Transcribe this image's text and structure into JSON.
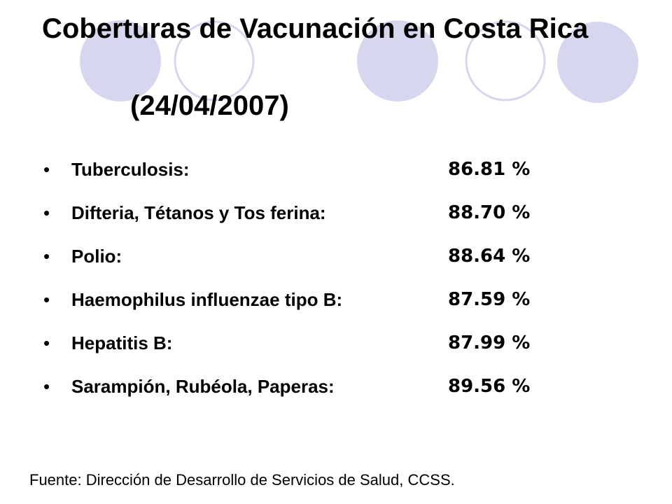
{
  "slide": {
    "title_line": "Coberturas de Vacunación en Costa Rica",
    "title_date": "(24/04/2007)",
    "source": "Fuente: Dirección de Desarrollo de Servicios de Salud, CCSS."
  },
  "coverage": {
    "items": [
      {
        "label": "Tuberculosis:",
        "value": "86.81 %"
      },
      {
        "label": "Difteria, Tétanos y Tos ferina:",
        "value": "88.70 %"
      },
      {
        "label": "Polio:",
        "value": "88.64 %"
      },
      {
        "label": "Haemophilus influenzae tipo B:",
        "value": "87.59 %"
      },
      {
        "label": "Hepatitis B:",
        "value": "87.99 %"
      },
      {
        "label": "Sarampión, Rubéola, Paperas:",
        "value": "89.56 %"
      }
    ]
  },
  "theme": {
    "circle_fill": "#d6d6ee",
    "circle_stroke": "#d6d6ee",
    "text_color": "#000000"
  }
}
